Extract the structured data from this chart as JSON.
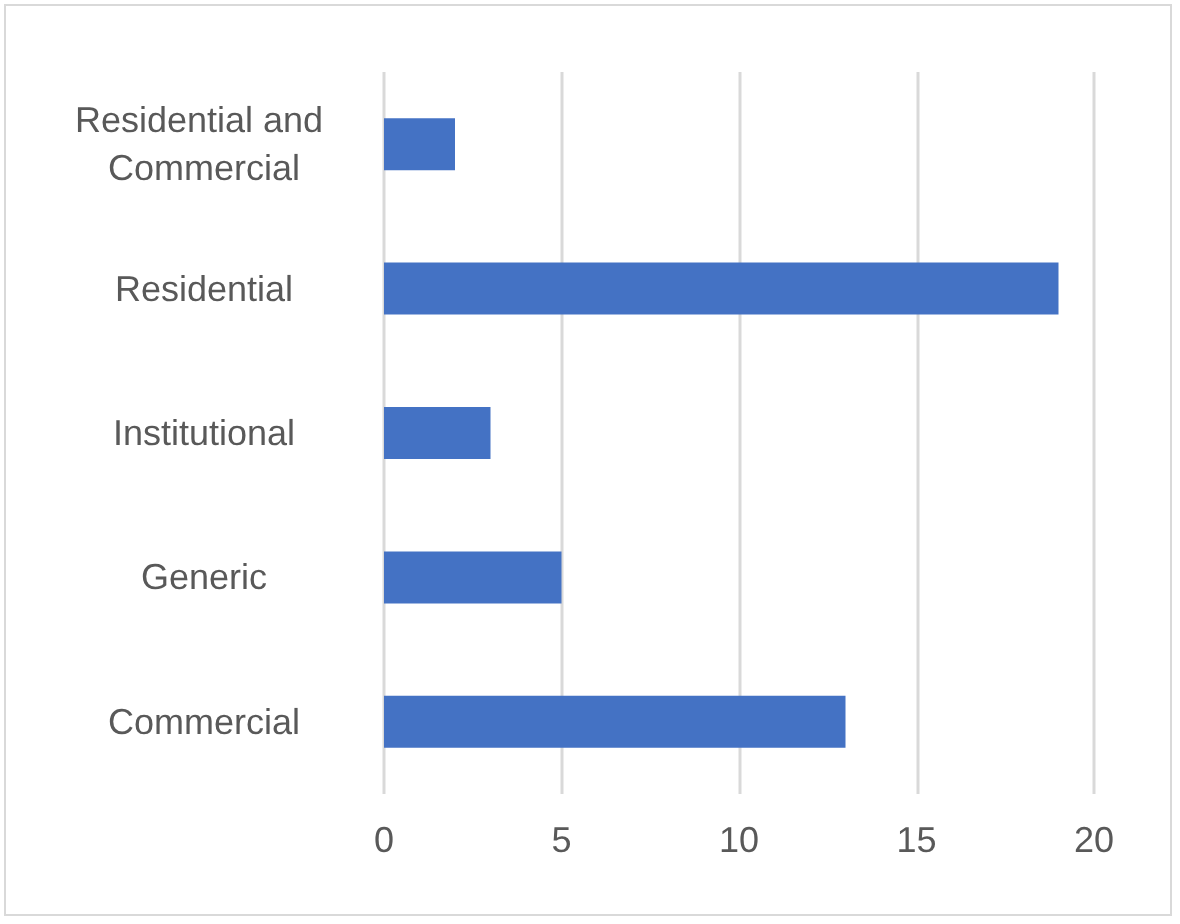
{
  "chart_data": {
    "type": "bar",
    "orientation": "horizontal",
    "categories": [
      "Residential and Commercial",
      "Residential",
      "Institutional",
      "Generic",
      "Commercial"
    ],
    "values": [
      2,
      19,
      3,
      5,
      13
    ],
    "color": "#4472c4",
    "xlim": [
      0,
      20
    ],
    "xticks": [
      0,
      5,
      10,
      15,
      20
    ],
    "grid": "x"
  }
}
